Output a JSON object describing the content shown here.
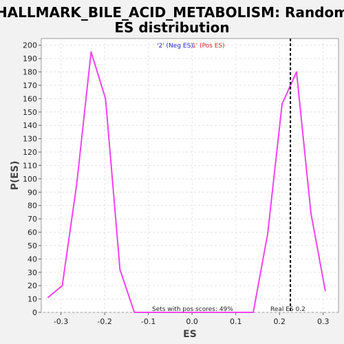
{
  "chart_data": {
    "type": "line",
    "title_line1": "HALLMARK_BILE_ACID_METABOLISM: Random",
    "title_line2": "ES distribution",
    "xlabel": "ES",
    "ylabel": "P(ES)",
    "xlim": [
      -0.345,
      0.335
    ],
    "ylim": [
      0,
      205
    ],
    "xticks": [
      -0.3,
      -0.2,
      -0.1,
      0.0,
      0.1,
      0.2,
      0.3
    ],
    "xtick_labels": [
      "-0.3",
      "-0.2",
      "-0.1",
      "0.0",
      "0.1",
      "0.2",
      "0.3"
    ],
    "yticks": [
      0,
      10,
      20,
      30,
      40,
      50,
      60,
      70,
      80,
      90,
      100,
      110,
      120,
      130,
      140,
      150,
      160,
      170,
      180,
      190,
      200
    ],
    "ytick_labels": [
      "0",
      "10",
      "20",
      "30",
      "40",
      "50",
      "60",
      "70",
      "80",
      "90",
      "100",
      "110",
      "120",
      "130",
      "140",
      "150",
      "160",
      "170",
      "180",
      "190",
      "200"
    ],
    "grid": true,
    "series": [
      {
        "color": "#ee44ee",
        "x": [
          -0.33,
          -0.297,
          -0.264,
          -0.231,
          -0.198,
          -0.165,
          -0.132,
          -0.1,
          0.0,
          0.1,
          0.14,
          0.173,
          0.206,
          0.239,
          0.272,
          0.305
        ],
        "y": [
          11,
          20,
          96,
          195,
          160,
          32,
          0,
          0,
          0,
          0,
          0,
          59,
          156,
          180,
          74,
          16
        ]
      }
    ],
    "real_es": 0.225,
    "legend_neg": "'2' (Neg ES)",
    "legend_pos": "1' (Pos ES)",
    "annotation_pos_scores": "Sets with pos scores: 49%",
    "annotation_real_es": "Real ES 0.2"
  }
}
